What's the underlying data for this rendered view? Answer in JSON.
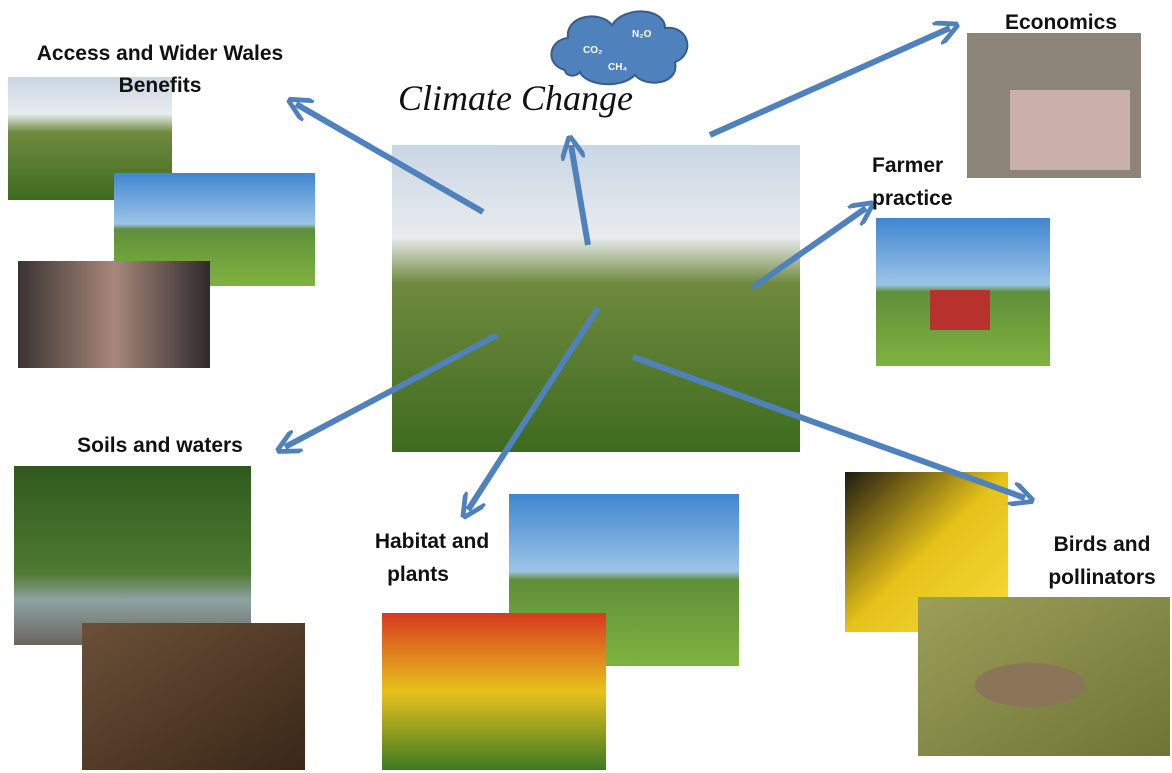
{
  "center": {
    "title": "Climate Change",
    "gases": [
      "CO₂",
      "N₂O",
      "CH₄"
    ]
  },
  "topics": [
    {
      "lines": [
        "Access  and Wider Wales",
        "Benefits"
      ]
    },
    {
      "lines": [
        "Economics"
      ]
    },
    {
      "lines": [
        "Farmer",
        "practice"
      ]
    },
    {
      "lines": [
        "Soils and waters"
      ]
    },
    {
      "lines": [
        "Habitat and",
        "plants"
      ]
    },
    {
      "lines": [
        "Birds and",
        "pollinators"
      ]
    }
  ]
}
